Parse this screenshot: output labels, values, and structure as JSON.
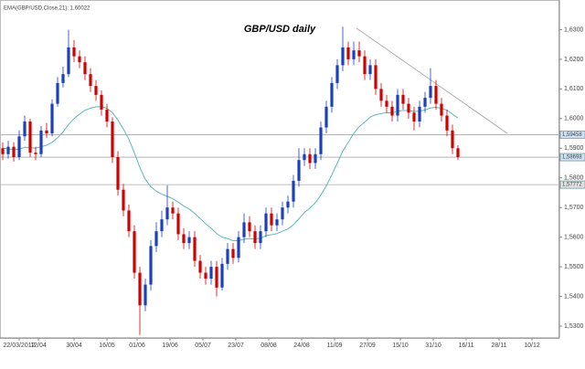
{
  "chart_data": {
    "type": "candlestick",
    "title": "GBP/USD daily",
    "indicator_label": "EMA(GBP/USD,Close,21): 1,60022",
    "up_color": "#1a3fc4",
    "down_color": "#d40000",
    "x": [
      -6,
      -4,
      -2,
      0,
      2,
      4,
      6,
      8,
      10,
      12,
      14,
      16,
      18,
      20,
      22,
      24,
      26,
      28,
      30,
      32,
      34,
      36,
      38,
      40,
      42,
      44,
      46,
      48,
      50,
      52,
      54,
      56,
      58,
      60,
      62,
      64,
      66,
      68,
      70,
      72,
      74,
      76,
      78,
      80,
      82,
      84,
      86,
      88,
      90,
      92,
      94,
      96,
      98,
      100,
      102,
      104,
      106,
      108,
      110,
      112,
      114,
      116,
      118,
      120,
      122,
      124,
      126,
      128,
      130,
      132,
      134,
      136,
      138,
      140,
      142,
      144,
      146,
      148,
      150,
      152,
      154,
      156,
      158,
      160
    ],
    "ohlc": [
      [
        1.59,
        1.592,
        1.586,
        1.588
      ],
      [
        1.588,
        1.5925,
        1.5865,
        1.5905
      ],
      [
        1.5905,
        1.592,
        1.5855,
        1.587
      ],
      [
        1.587,
        1.596,
        1.586,
        1.594
      ],
      [
        1.594,
        1.601,
        1.5925,
        1.599
      ],
      [
        1.599,
        1.6,
        1.587,
        1.5885
      ],
      [
        1.5885,
        1.5905,
        1.586,
        1.588
      ],
      [
        1.588,
        1.5975,
        1.587,
        1.596
      ],
      [
        1.596,
        1.5985,
        1.5935,
        1.595
      ],
      [
        1.595,
        1.6065,
        1.594,
        1.605
      ],
      [
        1.605,
        1.614,
        1.604,
        1.612
      ],
      [
        1.612,
        1.6175,
        1.6105,
        1.615
      ],
      [
        1.615,
        1.63,
        1.614,
        1.624
      ],
      [
        1.624,
        1.6265,
        1.619,
        1.621
      ],
      [
        1.621,
        1.623,
        1.617,
        1.619
      ],
      [
        1.619,
        1.621,
        1.613,
        1.615
      ],
      [
        1.615,
        1.617,
        1.609,
        1.611
      ],
      [
        1.611,
        1.613,
        1.606,
        1.608
      ],
      [
        1.608,
        1.6095,
        1.601,
        1.603
      ],
      [
        1.603,
        1.605,
        1.597,
        1.599
      ],
      [
        1.599,
        1.6005,
        1.585,
        1.587
      ],
      [
        1.587,
        1.589,
        1.574,
        1.576
      ],
      [
        1.576,
        1.578,
        1.567,
        1.569
      ],
      [
        1.569,
        1.571,
        1.56,
        1.562
      ],
      [
        1.562,
        1.564,
        1.546,
        1.548
      ],
      [
        1.548,
        1.55,
        1.527,
        1.537
      ],
      [
        1.537,
        1.546,
        1.535,
        1.544
      ],
      [
        1.544,
        1.559,
        1.542,
        1.557
      ],
      [
        1.557,
        1.565,
        1.555,
        1.562
      ],
      [
        1.562,
        1.569,
        1.56,
        1.566
      ],
      [
        1.566,
        1.5775,
        1.564,
        1.57
      ],
      [
        1.57,
        1.572,
        1.566,
        1.568
      ],
      [
        1.568,
        1.57,
        1.559,
        1.561
      ],
      [
        1.561,
        1.563,
        1.556,
        1.558
      ],
      [
        1.558,
        1.562,
        1.556,
        1.56
      ],
      [
        1.56,
        1.562,
        1.55,
        1.552
      ],
      [
        1.552,
        1.554,
        1.546,
        1.548
      ],
      [
        1.548,
        1.55,
        1.544,
        1.546
      ],
      [
        1.546,
        1.552,
        1.544,
        1.55
      ],
      [
        1.55,
        1.552,
        1.54,
        1.543
      ],
      [
        1.543,
        1.553,
        1.542,
        1.551
      ],
      [
        1.551,
        1.558,
        1.549,
        1.556
      ],
      [
        1.556,
        1.558,
        1.551,
        1.553
      ],
      [
        1.553,
        1.562,
        1.5515,
        1.56
      ],
      [
        1.56,
        1.568,
        1.558,
        1.565
      ],
      [
        1.565,
        1.567,
        1.56,
        1.562
      ],
      [
        1.562,
        1.564,
        1.556,
        1.558
      ],
      [
        1.558,
        1.564,
        1.556,
        1.562
      ],
      [
        1.562,
        1.57,
        1.56,
        1.568
      ],
      [
        1.568,
        1.57,
        1.562,
        1.564
      ],
      [
        1.564,
        1.568,
        1.562,
        1.566
      ],
      [
        1.566,
        1.572,
        1.564,
        1.57
      ],
      [
        1.57,
        1.574,
        1.568,
        1.572
      ],
      [
        1.572,
        1.581,
        1.57,
        1.579
      ],
      [
        1.579,
        1.59,
        1.577,
        1.586
      ],
      [
        1.586,
        1.59,
        1.584,
        1.588
      ],
      [
        1.588,
        1.59,
        1.583,
        1.585
      ],
      [
        1.585,
        1.59,
        1.583,
        1.588
      ],
      [
        1.588,
        1.599,
        1.586,
        1.597
      ],
      [
        1.597,
        1.606,
        1.595,
        1.604
      ],
      [
        1.604,
        1.614,
        1.602,
        1.612
      ],
      [
        1.612,
        1.62,
        1.61,
        1.618
      ],
      [
        1.618,
        1.631,
        1.616,
        1.624
      ],
      [
        1.624,
        1.626,
        1.618,
        1.62
      ],
      [
        1.62,
        1.626,
        1.618,
        1.623
      ],
      [
        1.623,
        1.626,
        1.619,
        1.621
      ],
      [
        1.621,
        1.623,
        1.613,
        1.615
      ],
      [
        1.615,
        1.62,
        1.613,
        1.618
      ],
      [
        1.618,
        1.62,
        1.608,
        1.61
      ],
      [
        1.61,
        1.612,
        1.604,
        1.606
      ],
      [
        1.606,
        1.608,
        1.602,
        1.604
      ],
      [
        1.604,
        1.606,
        1.599,
        1.601
      ],
      [
        1.601,
        1.61,
        1.599,
        1.608
      ],
      [
        1.608,
        1.61,
        1.603,
        1.605
      ],
      [
        1.605,
        1.607,
        1.6,
        1.602
      ],
      [
        1.602,
        1.604,
        1.596,
        1.599
      ],
      [
        1.599,
        1.606,
        1.597,
        1.604
      ],
      [
        1.604,
        1.609,
        1.602,
        1.607
      ],
      [
        1.607,
        1.617,
        1.605,
        1.611
      ],
      [
        1.611,
        1.613,
        1.603,
        1.605
      ],
      [
        1.605,
        1.607,
        1.599,
        1.601
      ],
      [
        1.601,
        1.603,
        1.594,
        1.596
      ],
      [
        1.596,
        1.598,
        1.588,
        1.59
      ],
      [
        1.59,
        1.591,
        1.586,
        1.587
      ]
    ],
    "ema": {
      "color": "#5fb8b8",
      "values": [
        1.59,
        1.5898,
        1.5895,
        1.5897,
        1.5903,
        1.5902,
        1.59,
        1.5905,
        1.591,
        1.592,
        1.5935,
        1.5955,
        1.598,
        1.6,
        1.6015,
        1.6028,
        1.6035,
        1.604,
        1.604,
        1.6035,
        1.602,
        1.5995,
        1.5965,
        1.593,
        1.5885,
        1.5835,
        1.5795,
        1.577,
        1.5755,
        1.5745,
        1.5738,
        1.573,
        1.5718,
        1.5705,
        1.5695,
        1.568,
        1.5663,
        1.5645,
        1.563,
        1.5612,
        1.56,
        1.5595,
        1.5588,
        1.5588,
        1.5593,
        1.5595,
        1.5594,
        1.5597,
        1.5605,
        1.5608,
        1.5612,
        1.562,
        1.5628,
        1.5642,
        1.5662,
        1.5683,
        1.5698,
        1.5716,
        1.5742,
        1.5773,
        1.581,
        1.585,
        1.589,
        1.592,
        1.595,
        1.5973,
        1.5988,
        1.6005,
        1.6013,
        1.6017,
        1.602,
        1.6019,
        1.6025,
        1.6027,
        1.6027,
        1.6024,
        1.6025,
        1.6029,
        1.6036,
        1.6038,
        1.6035,
        1.6028,
        1.6015,
        1.6002
      ]
    },
    "levels": [
      {
        "value": 1.59458,
        "label": "1,59458"
      },
      {
        "value": 1.58698,
        "label": "1,58698"
      },
      {
        "value": 1.57772,
        "label": "1,57772"
      }
    ],
    "trendline": {
      "x": [
        123,
        178
      ],
      "y": [
        1.6305,
        1.595
      ],
      "color": "#999999"
    },
    "xlim": [
      -7,
      197
    ],
    "ylim": [
      1.526,
      1.64
    ],
    "xticks": [
      {
        "value": 0,
        "label": "22/03/2012"
      },
      {
        "value": 7,
        "label": "12/04"
      },
      {
        "value": 20,
        "label": "30/04"
      },
      {
        "value": 32,
        "label": "16/05"
      },
      {
        "value": 43,
        "label": "01/06"
      },
      {
        "value": 55,
        "label": "19/06"
      },
      {
        "value": 67,
        "label": "05/07"
      },
      {
        "value": 79,
        "label": "23/07"
      },
      {
        "value": 91,
        "label": "08/08"
      },
      {
        "value": 103,
        "label": "24/08"
      },
      {
        "value": 115,
        "label": "11/09"
      },
      {
        "value": 127,
        "label": "27/09"
      },
      {
        "value": 139,
        "label": "15/10"
      },
      {
        "value": 151,
        "label": "31/10"
      },
      {
        "value": 163,
        "label": "16/11"
      },
      {
        "value": 175,
        "label": "28/11"
      },
      {
        "value": 187,
        "label": "10/12"
      }
    ],
    "yticks": [
      {
        "value": 1.53,
        "label": "1,5300"
      },
      {
        "value": 1.54,
        "label": "1,5400"
      },
      {
        "value": 1.55,
        "label": "1,5500"
      },
      {
        "value": 1.56,
        "label": "1,5600"
      },
      {
        "value": 1.57,
        "label": "1,5700"
      },
      {
        "value": 1.58,
        "label": "1,5800"
      },
      {
        "value": 1.59,
        "label": "1,5900"
      },
      {
        "value": 1.6,
        "label": "1,6000"
      },
      {
        "value": 1.61,
        "label": "1,6100"
      },
      {
        "value": 1.62,
        "label": "1,6200"
      },
      {
        "value": 1.63,
        "label": "1,6300"
      }
    ]
  }
}
